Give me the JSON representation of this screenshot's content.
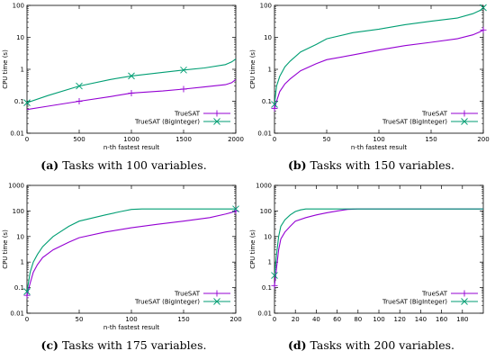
{
  "colors": {
    "truesat": "#9400d3",
    "biginteger": "#009e73"
  },
  "chart_data": [
    {
      "type": "line",
      "caption_letter": "(a)",
      "caption_text": " Tasks with 100 variables.",
      "xlabel": "n-th fastest result",
      "ylabel": "CPU time (s)",
      "xlim": [
        0,
        2000
      ],
      "xticks": [
        0,
        500,
        1000,
        1500,
        2000
      ],
      "ylim": [
        0.01,
        100
      ],
      "yscale": "log",
      "yticks": [
        0.01,
        0.1,
        1,
        10,
        100
      ],
      "ytick_labels": [
        "0.01",
        "0.1",
        "1",
        "10",
        "100"
      ],
      "legend_position": "bottom-right",
      "series": [
        {
          "name": "TrueSAT",
          "marker": "plus",
          "markers_x": [
            500,
            1000,
            1500
          ],
          "points": [
            [
              0,
              0.055
            ],
            [
              200,
              0.07
            ],
            [
              500,
              0.1
            ],
            [
              800,
              0.14
            ],
            [
              1000,
              0.18
            ],
            [
              1300,
              0.21
            ],
            [
              1500,
              0.24
            ],
            [
              1700,
              0.28
            ],
            [
              1900,
              0.33
            ],
            [
              1960,
              0.38
            ],
            [
              2000,
              0.48
            ]
          ]
        },
        {
          "name": "TrueSAT (BigInteger)",
          "marker": "x",
          "markers_x": [
            0,
            500,
            1000,
            1500
          ],
          "points": [
            [
              0,
              0.09
            ],
            [
              200,
              0.15
            ],
            [
              500,
              0.3
            ],
            [
              800,
              0.48
            ],
            [
              1000,
              0.62
            ],
            [
              1300,
              0.8
            ],
            [
              1500,
              0.95
            ],
            [
              1700,
              1.1
            ],
            [
              1900,
              1.4
            ],
            [
              1960,
              1.7
            ],
            [
              2000,
              2.1
            ]
          ]
        }
      ]
    },
    {
      "type": "line",
      "caption_letter": "(b)",
      "caption_text": " Tasks with 150 variables.",
      "xlabel": "n-th fastest result",
      "ylabel": "CPU time (s)",
      "xlim": [
        0,
        200
      ],
      "xticks": [
        0,
        50,
        100,
        150,
        200
      ],
      "ylim": [
        0.01,
        100
      ],
      "yscale": "log",
      "yticks": [
        0.01,
        0.1,
        1,
        10,
        100
      ],
      "ytick_labels": [
        "0.01",
        "0.1",
        "1",
        "10",
        "100"
      ],
      "legend_position": "bottom-right",
      "series": [
        {
          "name": "TrueSAT",
          "marker": "plus",
          "markers_x": [
            0,
            200
          ],
          "points": [
            [
              0,
              0.06
            ],
            [
              2,
              0.1
            ],
            [
              5,
              0.2
            ],
            [
              10,
              0.35
            ],
            [
              15,
              0.5
            ],
            [
              25,
              0.9
            ],
            [
              40,
              1.5
            ],
            [
              50,
              2
            ],
            [
              75,
              2.8
            ],
            [
              100,
              4
            ],
            [
              125,
              5.5
            ],
            [
              150,
              7
            ],
            [
              175,
              9
            ],
            [
              190,
              12
            ],
            [
              197,
              15
            ],
            [
              200,
              17
            ]
          ]
        },
        {
          "name": "TrueSAT (BigInteger)",
          "marker": "x",
          "markers_x": [
            0,
            200
          ],
          "points": [
            [
              0,
              0.08
            ],
            [
              2,
              0.3
            ],
            [
              5,
              0.6
            ],
            [
              10,
              1.2
            ],
            [
              15,
              1.8
            ],
            [
              25,
              3.5
            ],
            [
              40,
              6
            ],
            [
              50,
              9
            ],
            [
              75,
              14
            ],
            [
              100,
              18
            ],
            [
              125,
              25
            ],
            [
              150,
              32
            ],
            [
              175,
              40
            ],
            [
              190,
              55
            ],
            [
              197,
              70
            ],
            [
              200,
              85
            ]
          ]
        }
      ]
    },
    {
      "type": "line",
      "caption_letter": "(c)",
      "caption_text": " Tasks with 175 variables.",
      "xlabel": "n-th fastest result",
      "ylabel": "CPU time (s)",
      "xlim": [
        0,
        200
      ],
      "xticks": [
        0,
        50,
        100,
        150,
        200
      ],
      "ylim": [
        0.01,
        1000
      ],
      "yscale": "log",
      "yticks": [
        0.01,
        0.1,
        1,
        10,
        100,
        1000
      ],
      "ytick_labels": [
        "0.01",
        "0.1",
        "1",
        "10",
        "100",
        "1000"
      ],
      "legend_position": "bottom-right",
      "series": [
        {
          "name": "TrueSAT",
          "marker": "plus",
          "markers_x": [
            0,
            200
          ],
          "points": [
            [
              0,
              0.05
            ],
            [
              3,
              0.15
            ],
            [
              6,
              0.4
            ],
            [
              10,
              0.8
            ],
            [
              15,
              1.5
            ],
            [
              25,
              3
            ],
            [
              40,
              6
            ],
            [
              50,
              9
            ],
            [
              75,
              15
            ],
            [
              100,
              22
            ],
            [
              125,
              30
            ],
            [
              150,
              40
            ],
            [
              175,
              55
            ],
            [
              190,
              75
            ],
            [
              197,
              90
            ],
            [
              200,
              100
            ]
          ]
        },
        {
          "name": "TrueSAT (BigInteger)",
          "marker": "x",
          "markers_x": [
            0,
            200
          ],
          "points": [
            [
              0,
              0.07
            ],
            [
              3,
              0.4
            ],
            [
              6,
              1
            ],
            [
              10,
              2
            ],
            [
              15,
              4
            ],
            [
              25,
              10
            ],
            [
              40,
              25
            ],
            [
              50,
              40
            ],
            [
              75,
              70
            ],
            [
              90,
              95
            ],
            [
              100,
              115
            ],
            [
              110,
              120
            ],
            [
              150,
              120
            ],
            [
              200,
              120
            ]
          ]
        }
      ]
    },
    {
      "type": "line",
      "caption_letter": "(d)",
      "caption_text": " Tasks with 200 variables.",
      "xlabel": "",
      "ylabel": "CPU time (s)",
      "xlim": [
        0,
        200
      ],
      "xticks": [
        0,
        20,
        40,
        60,
        80,
        100,
        120,
        140,
        160,
        180
      ],
      "ylim": [
        0.01,
        1000
      ],
      "yscale": "log",
      "yticks": [
        0.01,
        0.1,
        1,
        10,
        100,
        1000
      ],
      "ytick_labels": [
        "0.01",
        "0.1",
        "1",
        "10",
        "100",
        "1000"
      ],
      "legend_position": "bottom-right",
      "series": [
        {
          "name": "TrueSAT",
          "marker": "plus",
          "markers_x": [
            0
          ],
          "points": [
            [
              0,
              0.12
            ],
            [
              2,
              0.6
            ],
            [
              4,
              3
            ],
            [
              6,
              8
            ],
            [
              10,
              15
            ],
            [
              15,
              25
            ],
            [
              20,
              40
            ],
            [
              30,
              55
            ],
            [
              40,
              70
            ],
            [
              50,
              85
            ],
            [
              60,
              100
            ],
            [
              70,
              115
            ],
            [
              80,
              120
            ],
            [
              100,
              120
            ],
            [
              200,
              120
            ]
          ]
        },
        {
          "name": "TrueSAT (BigInteger)",
          "marker": "x",
          "markers_x": [
            0
          ],
          "points": [
            [
              0,
              0.3
            ],
            [
              2,
              2
            ],
            [
              4,
              10
            ],
            [
              6,
              25
            ],
            [
              10,
              45
            ],
            [
              15,
              70
            ],
            [
              20,
              95
            ],
            [
              25,
              110
            ],
            [
              30,
              120
            ],
            [
              50,
              120
            ],
            [
              200,
              120
            ]
          ]
        }
      ]
    }
  ]
}
